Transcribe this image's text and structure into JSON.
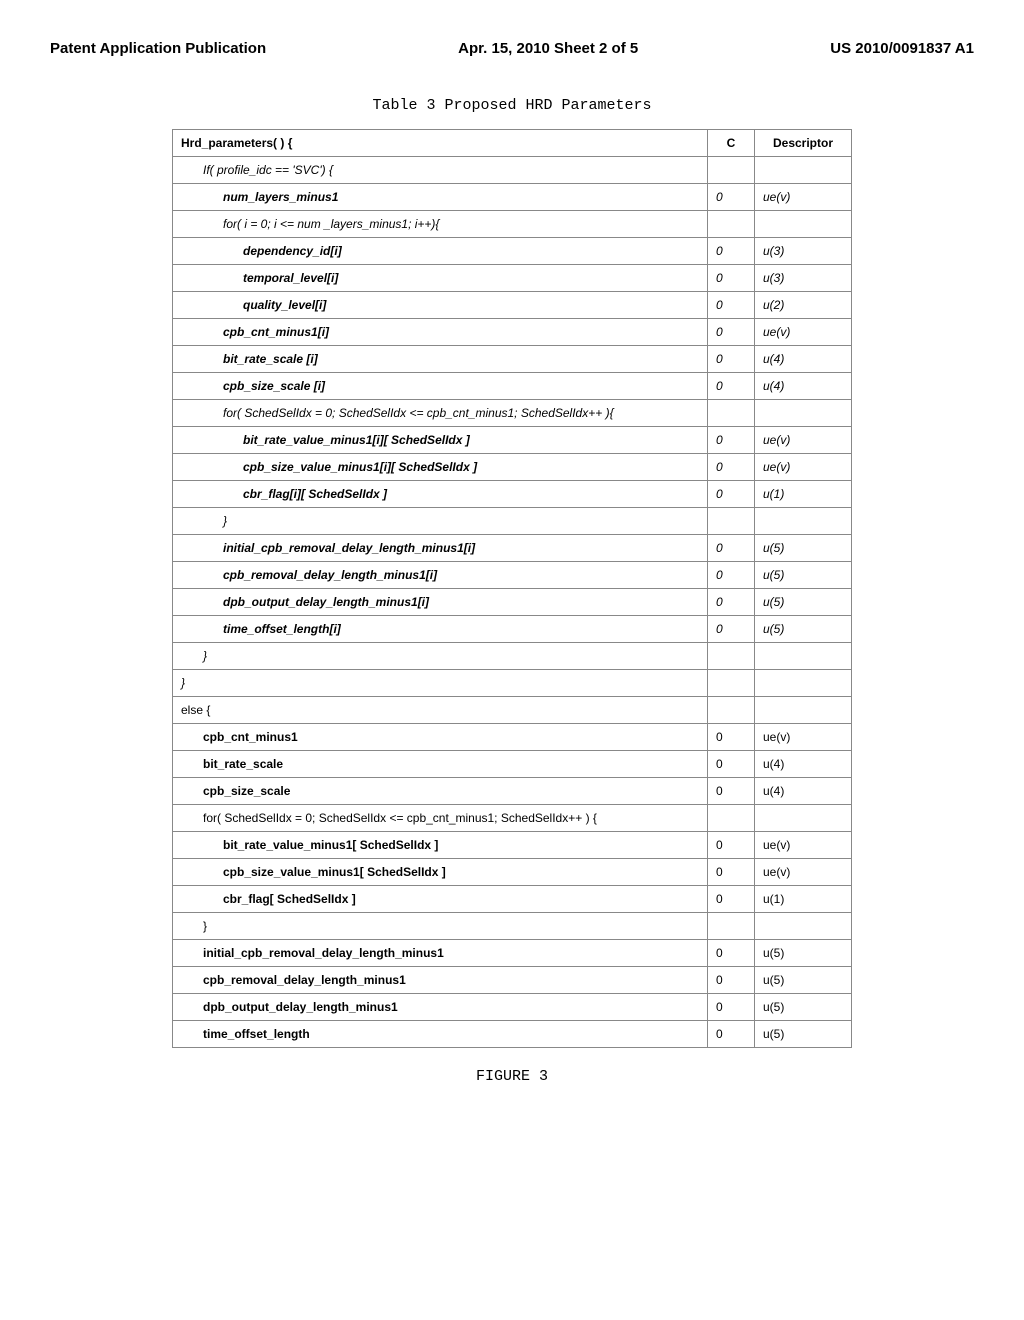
{
  "header": {
    "left": "Patent Application Publication",
    "center": "Apr. 15, 2010  Sheet 2 of 5",
    "right": "US 2010/0091837 A1"
  },
  "table_caption": "Table 3 Proposed HRD Parameters",
  "figure_caption": "FIGURE 3",
  "columns": {
    "h1": "Hrd_parameters( ) {",
    "c": "C",
    "d": "Descriptor"
  },
  "rows": [
    {
      "text": "If( profile_idc == 'SVC') {",
      "c": "",
      "d": "",
      "indent": 1,
      "italic": true
    },
    {
      "text": "num_layers_minus1",
      "c": "0",
      "d": "ue(v)",
      "indent": 2,
      "italic": true
    },
    {
      "text": "for( i = 0; i <= num _layers_minus1; i++){",
      "c": "",
      "d": "",
      "indent": 2,
      "italic": true
    },
    {
      "text": "dependency_id[i]",
      "c": "0",
      "d": "u(3)",
      "indent": 3,
      "italic": true
    },
    {
      "text": "temporal_level[i]",
      "c": "0",
      "d": "u(3)",
      "indent": 3,
      "italic": true
    },
    {
      "text": "quality_level[i]",
      "c": "0",
      "d": "u(2)",
      "indent": 3,
      "italic": true
    },
    {
      "text": "cpb_cnt_minus1[i]",
      "c": "0",
      "d": "ue(v)",
      "indent": 2,
      "italic": true
    },
    {
      "text": "bit_rate_scale [i]",
      "c": "0",
      "d": "u(4)",
      "indent": 2,
      "italic": true
    },
    {
      "text": "cpb_size_scale [i]",
      "c": "0",
      "d": "u(4)",
      "indent": 2,
      "italic": true
    },
    {
      "text": "for( SchedSelIdx = 0; SchedSelIdx <= cpb_cnt_minus1; SchedSelIdx++ ){",
      "c": "",
      "d": "",
      "indent": 2,
      "italic": true
    },
    {
      "text": "bit_rate_value_minus1[i][ SchedSelIdx ]",
      "c": "0",
      "d": "ue(v)",
      "indent": 3,
      "italic": true
    },
    {
      "text": "cpb_size_value_minus1[i][ SchedSelIdx ]",
      "c": "0",
      "d": "ue(v)",
      "indent": 3,
      "italic": true
    },
    {
      "text": "cbr_flag[i][ SchedSelIdx ]",
      "c": "0",
      "d": "u(1)",
      "indent": 3,
      "italic": true
    },
    {
      "text": "}",
      "c": "",
      "d": "",
      "indent": 2,
      "italic": true
    },
    {
      "text": "initial_cpb_removal_delay_length_minus1[i]",
      "c": "0",
      "d": "u(5)",
      "indent": 2,
      "italic": true
    },
    {
      "text": "cpb_removal_delay_length_minus1[i]",
      "c": "0",
      "d": "u(5)",
      "indent": 2,
      "italic": true
    },
    {
      "text": "dpb_output_delay_length_minus1[i]",
      "c": "0",
      "d": "u(5)",
      "indent": 2,
      "italic": true
    },
    {
      "text": "time_offset_length[i]",
      "c": "0",
      "d": "u(5)",
      "indent": 2,
      "italic": true
    },
    {
      "text": "}",
      "c": "",
      "d": "",
      "indent": 1,
      "italic": true
    },
    {
      "text": "}",
      "c": "",
      "d": "",
      "indent": 0,
      "italic": true
    },
    {
      "text": "else {",
      "c": "",
      "d": "",
      "indent": 0,
      "italic": false
    },
    {
      "text": "cpb_cnt_minus1",
      "c": "0",
      "d": "ue(v)",
      "indent": 1,
      "italic": false
    },
    {
      "text": "bit_rate_scale",
      "c": "0",
      "d": "u(4)",
      "indent": 1,
      "italic": false
    },
    {
      "text": "cpb_size_scale",
      "c": "0",
      "d": "u(4)",
      "indent": 1,
      "italic": false
    },
    {
      "text": "for( SchedSelIdx = 0; SchedSelIdx <= cpb_cnt_minus1; SchedSelIdx++ ) {",
      "c": "",
      "d": "",
      "indent": 1,
      "italic": false
    },
    {
      "text": "bit_rate_value_minus1[ SchedSelIdx ]",
      "c": "0",
      "d": "ue(v)",
      "indent": 2,
      "italic": false
    },
    {
      "text": "cpb_size_value_minus1[ SchedSelIdx ]",
      "c": "0",
      "d": "ue(v)",
      "indent": 2,
      "italic": false
    },
    {
      "text": "cbr_flag[ SchedSelIdx ]",
      "c": "0",
      "d": "u(1)",
      "indent": 2,
      "italic": false
    },
    {
      "text": "}",
      "c": "",
      "d": "",
      "indent": 1,
      "italic": false
    },
    {
      "text": "initial_cpb_removal_delay_length_minus1",
      "c": "0",
      "d": "u(5)",
      "indent": 1,
      "italic": false
    },
    {
      "text": "cpb_removal_delay_length_minus1",
      "c": "0",
      "d": "u(5)",
      "indent": 1,
      "italic": false
    },
    {
      "text": "dpb_output_delay_length_minus1",
      "c": "0",
      "d": "u(5)",
      "indent": 1,
      "italic": false
    },
    {
      "text": "time_offset_length",
      "c": "0",
      "d": "u(5)",
      "indent": 1,
      "italic": false
    }
  ]
}
